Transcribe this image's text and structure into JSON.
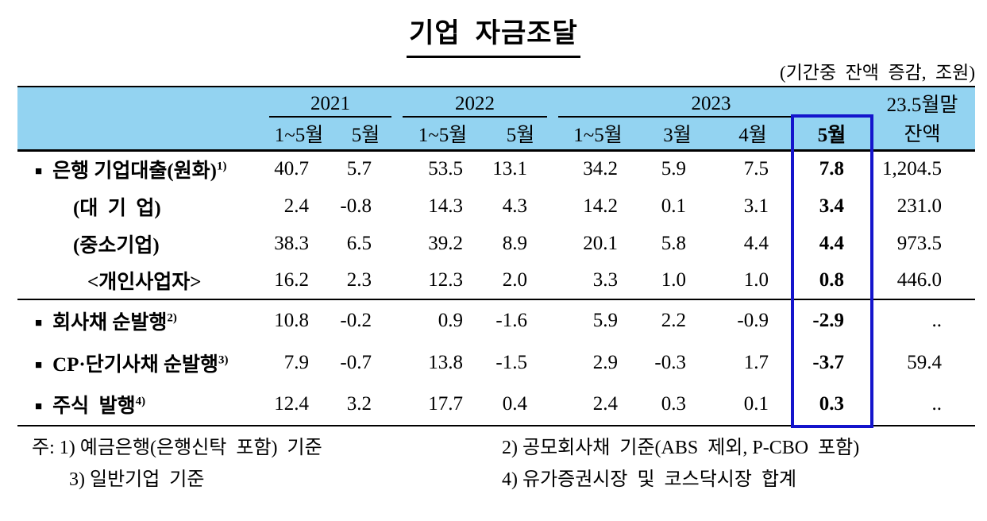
{
  "title": "기업  자금조달",
  "unit_note": "(기간중  잔액  증감,  조원)",
  "colors": {
    "header_bg": "#93D3F1",
    "highlight_border": "#1414CC"
  },
  "table": {
    "year_groups": [
      {
        "label": "2021"
      },
      {
        "label": "2022"
      },
      {
        "label": "2023"
      }
    ],
    "balance_header": {
      "line1": "23.5월말",
      "line2": "잔액"
    },
    "month_headers": [
      "1~5월",
      "5월",
      "1~5월",
      "5월",
      "1~5월",
      "3월",
      "4월",
      "5월"
    ],
    "highlight_col": 7,
    "rows": [
      {
        "bullet": "■",
        "label": "은행 기업대출(원화)",
        "sup": "1)",
        "indent": 0,
        "values": [
          "40.7",
          "5.7",
          "53.5",
          "13.1",
          "34.2",
          "5.9",
          "7.5",
          "7.8",
          "1,204.5"
        ]
      },
      {
        "bullet": "",
        "label": "(대  기  업)",
        "sup": "",
        "indent": 1,
        "values": [
          "2.4",
          "-0.8",
          "14.3",
          "4.3",
          "14.2",
          "0.1",
          "3.1",
          "3.4",
          "231.0"
        ]
      },
      {
        "bullet": "",
        "label": "(중소기업)",
        "sup": "",
        "indent": 1,
        "values": [
          "38.3",
          "6.5",
          "39.2",
          "8.9",
          "20.1",
          "5.8",
          "4.4",
          "4.4",
          "973.5"
        ]
      },
      {
        "bullet": "",
        "label": "<개인사업자>",
        "sup": "",
        "indent": 2,
        "values": [
          "16.2",
          "2.3",
          "12.3",
          "2.0",
          "3.3",
          "1.0",
          "1.0",
          "0.8",
          "446.0"
        ]
      },
      {
        "bullet": "■",
        "label": "회사채 순발행",
        "sup": "2)",
        "indent": 0,
        "group_start": true,
        "values": [
          "10.8",
          "-0.2",
          "0.9",
          "-1.6",
          "5.9",
          "2.2",
          "-0.9",
          "-2.9",
          ".."
        ]
      },
      {
        "bullet": "■",
        "label": "CP·단기사채 순발행",
        "sup": "3)",
        "indent": 0,
        "values": [
          "7.9",
          "-0.7",
          "13.8",
          "-1.5",
          "2.9",
          "-0.3",
          "1.7",
          "-3.7",
          "59.4"
        ]
      },
      {
        "bullet": "■",
        "label": "주식  발행",
        "sup": "4)",
        "indent": 0,
        "values": [
          "12.4",
          "3.2",
          "17.7",
          "0.4",
          "2.4",
          "0.3",
          "0.1",
          "0.3",
          ".."
        ]
      }
    ]
  },
  "footnotes": {
    "left1": "주: 1) 예금은행(은행신탁  포함)  기준",
    "left2": "3) 일반기업  기준",
    "right1": "2) 공모회사채  기준(ABS  제외, P-CBO  포함)",
    "right2": "4) 유가증권시장  및  코스닥시장  합계"
  }
}
